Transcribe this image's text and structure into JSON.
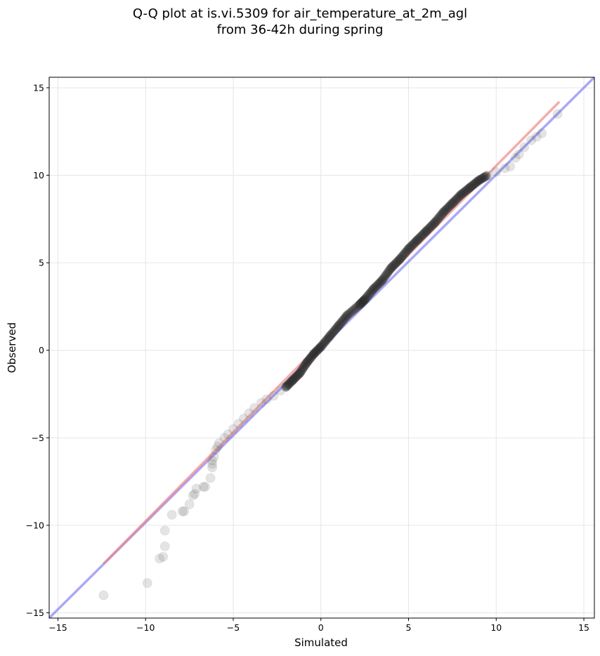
{
  "chart_data": {
    "type": "scatter",
    "title_line_1": "Q-Q plot at is.vi.5309 for air_temperature_at_2m_agl",
    "title_line_2": "from 36-42h during spring",
    "xlabel": "Simulated",
    "ylabel": "Observed",
    "xlim": [
      -15.5,
      15.6
    ],
    "ylim": [
      -15.3,
      15.6
    ],
    "xticks": [
      -15,
      -10,
      -5,
      0,
      5,
      10,
      15
    ],
    "yticks": [
      -15,
      -10,
      -5,
      0,
      5,
      10,
      15
    ],
    "xtick_labels": [
      "−15",
      "−10",
      "−5",
      "0",
      "5",
      "10",
      "15"
    ],
    "ytick_labels": [
      "−15",
      "−10",
      "−5",
      "0",
      "5",
      "10",
      "15"
    ],
    "grid": true,
    "reference_line": {
      "name": "1:1 line",
      "color": "#6f6ff0",
      "points": [
        [
          -15.5,
          -15.3
        ],
        [
          15.6,
          15.6
        ]
      ]
    },
    "fit_line": {
      "name": "fit",
      "color": "#f08080",
      "points": [
        [
          -12.4,
          -12.2
        ],
        [
          13.6,
          14.2
        ]
      ]
    },
    "quantiles": {
      "color": "#555555",
      "points": [
        [
          -12.4,
          -14.0
        ],
        [
          -9.9,
          -13.3
        ],
        [
          -9.2,
          -11.9
        ],
        [
          -9.0,
          -11.8
        ],
        [
          -8.9,
          -11.2
        ],
        [
          -8.9,
          -10.3
        ],
        [
          -8.5,
          -9.4
        ],
        [
          -7.9,
          -9.2
        ],
        [
          -7.8,
          -9.2
        ],
        [
          -7.5,
          -8.8
        ],
        [
          -7.3,
          -8.3
        ],
        [
          -7.2,
          -8.2
        ],
        [
          -7.1,
          -7.9
        ],
        [
          -6.7,
          -7.8
        ],
        [
          -6.6,
          -7.8
        ],
        [
          -6.3,
          -7.3
        ],
        [
          -6.2,
          -6.7
        ],
        [
          -6.2,
          -6.5
        ],
        [
          -6.2,
          -6.3
        ],
        [
          -6.1,
          -6.1
        ],
        [
          -6.0,
          -5.7
        ],
        [
          -5.9,
          -5.5
        ],
        [
          -5.8,
          -5.3
        ],
        [
          -5.5,
          -5.0
        ],
        [
          -5.3,
          -4.8
        ],
        [
          -5.0,
          -4.5
        ],
        [
          -4.7,
          -4.2
        ],
        [
          -4.4,
          -3.9
        ],
        [
          -4.1,
          -3.6
        ],
        [
          -3.8,
          -3.3
        ],
        [
          -3.4,
          -3.0
        ],
        [
          -3.1,
          -2.8
        ],
        [
          -2.7,
          -2.6
        ],
        [
          -2.3,
          -2.3
        ],
        [
          -2.0,
          -2.1
        ],
        [
          -1.6,
          -1.7
        ],
        [
          -1.2,
          -1.3
        ],
        [
          -0.8,
          -0.7
        ],
        [
          -0.4,
          -0.2
        ],
        [
          0.0,
          0.2
        ],
        [
          0.5,
          0.8
        ],
        [
          1.0,
          1.4
        ],
        [
          1.5,
          2.0
        ],
        [
          2.2,
          2.6
        ],
        [
          2.5,
          2.9
        ],
        [
          3.0,
          3.5
        ],
        [
          3.5,
          4.0
        ],
        [
          4.0,
          4.7
        ],
        [
          4.5,
          5.2
        ],
        [
          5.0,
          5.8
        ],
        [
          5.5,
          6.3
        ],
        [
          6.0,
          6.8
        ],
        [
          6.5,
          7.3
        ],
        [
          7.0,
          7.9
        ],
        [
          7.5,
          8.4
        ],
        [
          8.0,
          8.9
        ],
        [
          8.5,
          9.3
        ],
        [
          9.0,
          9.7
        ],
        [
          9.5,
          10.0
        ],
        [
          10.0,
          10.2
        ],
        [
          10.5,
          10.4
        ],
        [
          10.8,
          10.5
        ],
        [
          11.1,
          11.0
        ],
        [
          11.3,
          11.2
        ],
        [
          11.6,
          11.6
        ],
        [
          12.0,
          12.0
        ],
        [
          12.3,
          12.2
        ],
        [
          12.6,
          12.4
        ],
        [
          13.5,
          13.5
        ]
      ]
    }
  }
}
